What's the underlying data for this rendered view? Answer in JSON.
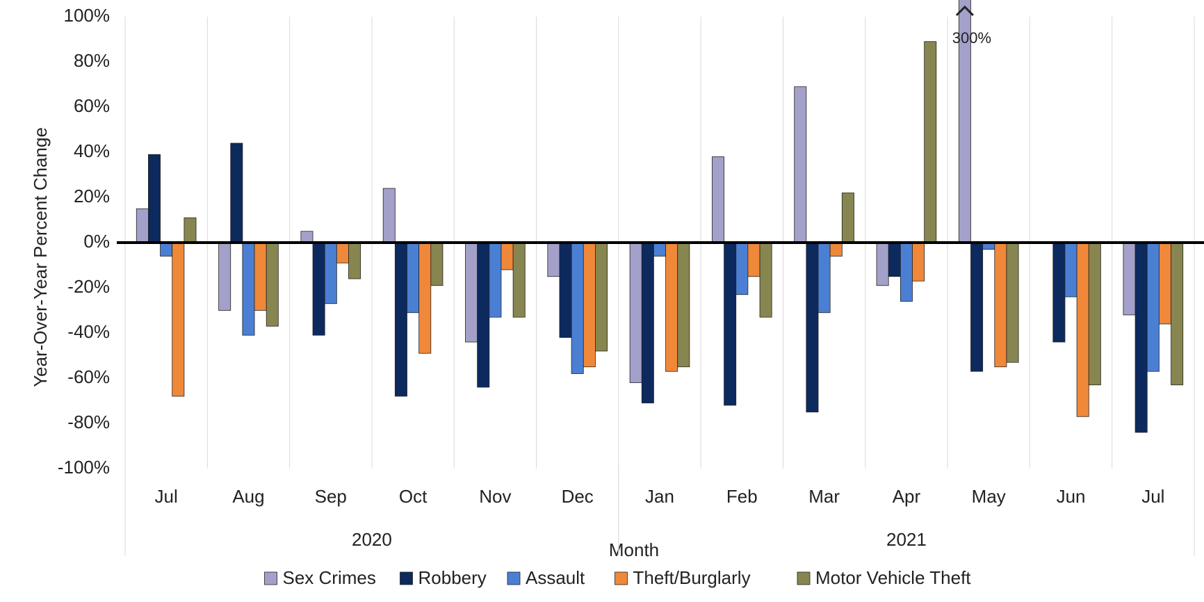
{
  "chart_data": {
    "type": "bar",
    "y_label": "Year-Over-Year Percent Change",
    "x_label": "Month",
    "categories": [
      "Jul",
      "Aug",
      "Sep",
      "Oct",
      "Nov",
      "Dec",
      "Jan",
      "Feb",
      "Mar",
      "Apr",
      "May",
      "Jun",
      "Jul"
    ],
    "groups": [
      {
        "label": "2020",
        "count": 6
      },
      {
        "label": "2021",
        "count": 7
      }
    ],
    "series": [
      {
        "name": "Sex Crimes",
        "color": "#a3a1c9",
        "values": [
          15,
          -30,
          5,
          24,
          -44,
          -15,
          -62,
          38,
          69,
          -19,
          300,
          0,
          -32
        ],
        "value_labels": [
          null,
          null,
          null,
          null,
          null,
          null,
          null,
          null,
          null,
          null,
          "300%",
          null,
          null
        ]
      },
      {
        "name": "Robbery",
        "color": "#0d2a5e",
        "values": [
          39,
          44,
          -41,
          -68,
          -64,
          -42,
          -71,
          -72,
          -75,
          -15,
          -57,
          -44,
          -84
        ]
      },
      {
        "name": "Assault",
        "color": "#4a7fd4",
        "values": [
          -6,
          -41,
          -27,
          -31,
          -33,
          -58,
          -6,
          -23,
          -31,
          -26,
          -3,
          -24,
          -57
        ]
      },
      {
        "name": "Theft/Burglarly",
        "color": "#f0883a",
        "values": [
          -68,
          -30,
          -9,
          -49,
          -12,
          -55,
          -57,
          -15,
          -6,
          -17,
          -55,
          -77,
          -36
        ]
      },
      {
        "name": "Motor Vehicle Theft",
        "color": "#878650",
        "values": [
          11,
          -37,
          -16,
          -19,
          -33,
          -48,
          -55,
          -33,
          22,
          89,
          -53,
          -63,
          -63
        ]
      }
    ],
    "ylim": [
      -100,
      100
    ],
    "yticks": [
      {
        "value": -100,
        "label": "-100%"
      },
      {
        "value": -80,
        "label": "-80%"
      },
      {
        "value": -60,
        "label": "-60%"
      },
      {
        "value": -40,
        "label": "-40%"
      },
      {
        "value": -20,
        "label": "-20%"
      },
      {
        "value": 0,
        "label": "0%"
      },
      {
        "value": 20,
        "label": "20%"
      },
      {
        "value": 40,
        "label": "40%"
      },
      {
        "value": 60,
        "label": "60%"
      },
      {
        "value": 80,
        "label": "80%"
      },
      {
        "value": 100,
        "label": "100%"
      }
    ],
    "legend": "bottom"
  }
}
